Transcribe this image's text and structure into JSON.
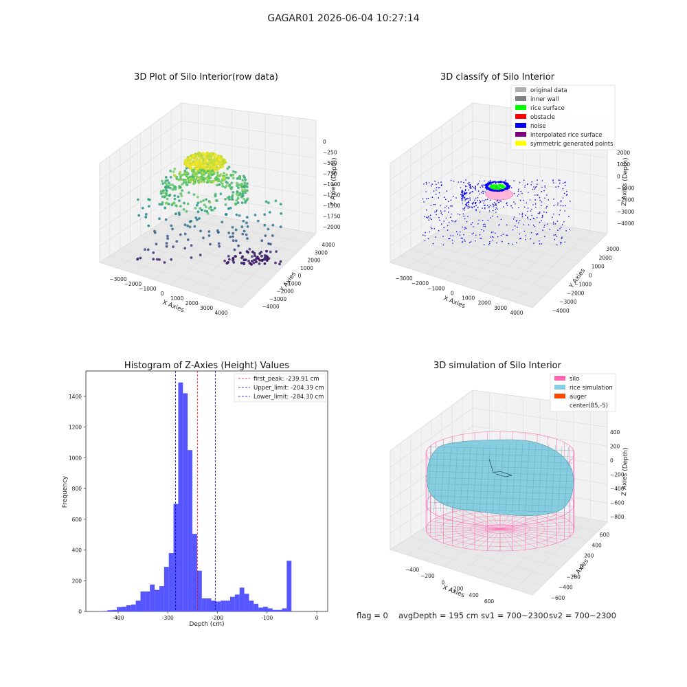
{
  "suptitle": "GAGAR01 2026-06-04 10:27:14",
  "footer": {
    "flag": "flag = 0",
    "avg_depth": "avgDepth = 195 cm",
    "sv1": "sv1 = 700~2300",
    "sv2": "sv2 = 700~2300"
  },
  "colors": {
    "pane": "#f2f2f2",
    "grid": "#dcdcdc",
    "hist": "#4d4dff",
    "peak": "#ff0000",
    "limit": "#0000cc",
    "silo": "#ff69b4",
    "rice": "#87cde0",
    "auger": "#ff4500",
    "noise": "#0000ee",
    "surface": "#00ff00"
  },
  "chart_data": [
    {
      "type": "scatter",
      "title": "3D Plot of Silo Interior(row data)",
      "xlabel": "X Axies",
      "ylabel": "Y Axies",
      "zlabel": "Z Axies (Depth)",
      "xticks": [
        "−3000",
        "−2000",
        "−1000",
        "0",
        "1000",
        "2000",
        "3000",
        "4000"
      ],
      "yticks": [
        "−4000",
        "−3000",
        "−2000",
        "−1000",
        "0",
        "1000",
        "2000",
        "3000",
        "4000"
      ],
      "zticks": [
        "0",
        "−250",
        "−500",
        "−750",
        "−1000",
        "−1250",
        "−1500",
        "−1750",
        "−2000"
      ]
    },
    {
      "type": "scatter",
      "title": "3D classify of Silo Interior",
      "xlabel": "X Axies",
      "ylabel": "Y Axies",
      "zlabel": "Z Axies (Depth)",
      "xticks": [
        "−3000",
        "−2000",
        "−1000",
        "0",
        "1000",
        "2000",
        "3000",
        "4000"
      ],
      "yticks": [
        "−4000",
        "−3000",
        "−2000",
        "−1000",
        "0",
        "1000",
        "2000",
        "3000"
      ],
      "zticks": [
        "2000",
        "1000",
        "0",
        "−1000",
        "−2000",
        "−3000",
        "−4000"
      ],
      "legend": [
        {
          "label": "original data",
          "color": "#b0b0b0"
        },
        {
          "label": "inner wall",
          "color": "#808080"
        },
        {
          "label": "rice surface",
          "color": "#00ff00"
        },
        {
          "label": "obstacle",
          "color": "#ff0000"
        },
        {
          "label": "noise",
          "color": "#0000ee"
        },
        {
          "label": "interpolated rice surface",
          "color": "#800080"
        },
        {
          "label": "symmetric generated points",
          "color": "#ffff00"
        }
      ]
    },
    {
      "type": "bar",
      "title": "Histogram of Z-Axies (Height) Values",
      "xlabel": "Depth (cm)",
      "ylabel": "Frequency",
      "xlim": [
        -465,
        22
      ],
      "ylim": [
        0,
        1565
      ],
      "xticks": [
        -400,
        -300,
        -200,
        -100,
        0
      ],
      "yticks": [
        0,
        200,
        400,
        600,
        800,
        1000,
        1200,
        1400
      ],
      "bin_width": 9.5,
      "bins_start": -450,
      "counts": [
        0,
        2,
        3,
        8,
        10,
        28,
        30,
        40,
        45,
        70,
        130,
        130,
        175,
        140,
        165,
        290,
        380,
        700,
        1490,
        1420,
        1050,
        505,
        265,
        85,
        85,
        70,
        65,
        70,
        70,
        95,
        110,
        155,
        115,
        70,
        50,
        25,
        30,
        20,
        10,
        10,
        20,
        330
      ],
      "vlines": [
        {
          "label": "first_peak: -239.91 cm",
          "x": -239.91,
          "color": "#ff0000"
        },
        {
          "label": "Upper_limit: -204.39 cm",
          "x": -204.39,
          "color": "#0000cc"
        },
        {
          "label": "Lower_limit: -284.30 cm",
          "x": -284.3,
          "color": "#0000cc"
        }
      ]
    },
    {
      "type": "area",
      "title": "3D simulation of Silo Interior",
      "xlabel": "X Axies",
      "ylabel": "Y Axies",
      "zlabel": "Z Axies (Depth)",
      "xticks": [
        "−400",
        "−200",
        "0",
        "200",
        "400",
        "600"
      ],
      "yticks": [
        "−600",
        "−400",
        "−200",
        "0",
        "200",
        "400",
        "600"
      ],
      "zticks": [
        "400",
        "200",
        "0",
        "−200",
        "−400",
        "−600",
        "−800"
      ],
      "legend": [
        {
          "label": "silo",
          "color": "#ff69b4"
        },
        {
          "label": "rice simulation",
          "color": "#87cde0"
        },
        {
          "label": "auger",
          "color": "#ff4500"
        },
        {
          "label": "center(85,-5)",
          "color": "#ffffff"
        }
      ]
    }
  ]
}
